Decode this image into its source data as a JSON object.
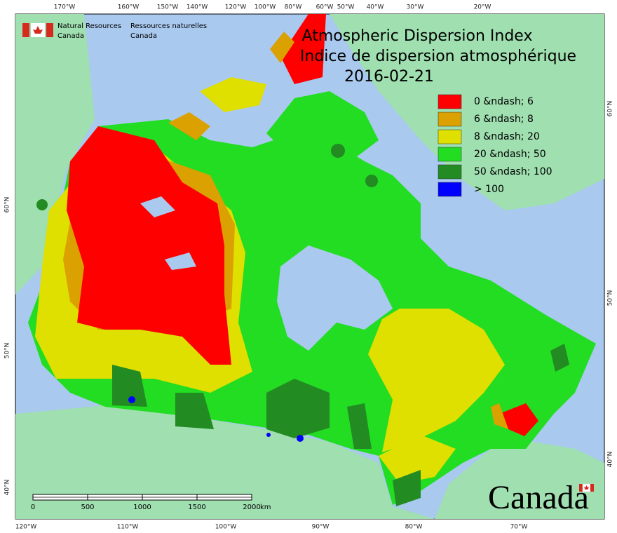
{
  "header": {
    "agency_en": [
      "Natural Resources",
      "Canada"
    ],
    "agency_fr": [
      "Ressources naturelles",
      "Canada"
    ],
    "title": [
      "Atmospheric Dispersion Index",
      "Indice de dispersion atmosphérique"
    ],
    "date": "2016-02-21"
  },
  "legend": [
    {
      "label": "0 &ndash; 6",
      "color": "#ff0000"
    },
    {
      "label": "6 &ndash; 8",
      "color": "#dba100"
    },
    {
      "label": "8 &ndash; 20",
      "color": "#dfdf00"
    },
    {
      "label": "20 &ndash; 50",
      "color": "#22dd22"
    },
    {
      "label": "50 &ndash; 100",
      "color": "#228b22"
    },
    {
      "label": "> 100",
      "color": "#0000ff"
    }
  ],
  "scale_bar": {
    "ticks": [
      0,
      500,
      1000,
      1500,
      2000
    ],
    "unit": "km"
  },
  "graticule": {
    "top": [
      "170°W",
      "160°W",
      "150°W",
      "140°W",
      "120°W",
      "100°W",
      "80°W",
      "60°W",
      "50°W",
      "40°W",
      "30°W",
      "20°W"
    ],
    "bottom": [
      "120°W",
      "110°W",
      "100°W",
      "90°W",
      "80°W",
      "70°W"
    ],
    "left": [
      "60°N",
      "50°N",
      "40°N"
    ],
    "right": [
      "60°N",
      "50°N",
      "40°N"
    ]
  },
  "wordmark": "Canada"
}
